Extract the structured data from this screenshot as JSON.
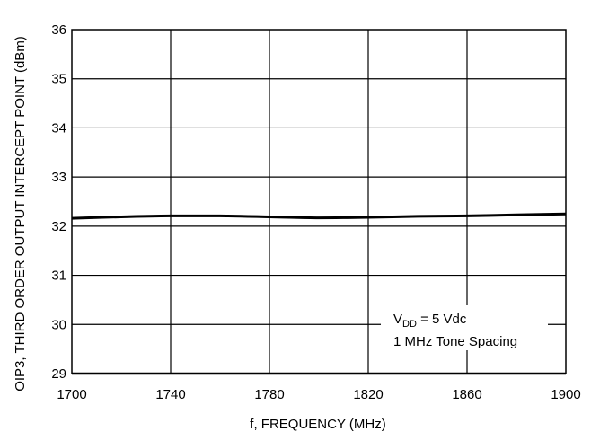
{
  "chart_data": {
    "type": "line",
    "title": "",
    "xlabel": "f, FREQUENCY (MHz)",
    "ylabel": "OIP3, THIRD ORDER OUTPUT INTERCEPT POINT (dBm)",
    "xlim": [
      1700,
      1900
    ],
    "ylim": [
      29,
      36
    ],
    "x_ticks": [
      1700,
      1740,
      1780,
      1820,
      1860,
      1900
    ],
    "y_ticks": [
      29,
      30,
      31,
      32,
      33,
      34,
      35,
      36
    ],
    "x_tick_labels": [
      "1700",
      "1740",
      "1780",
      "1820",
      "1860",
      "1900"
    ],
    "y_tick_labels": [
      "29",
      "30",
      "31",
      "32",
      "33",
      "34",
      "35",
      "36"
    ],
    "grid": true,
    "legend": "none",
    "series": [
      {
        "x": [
          1700,
          1720,
          1740,
          1750,
          1760,
          1780,
          1800,
          1820,
          1840,
          1860,
          1880,
          1900
        ],
        "values": [
          32.16,
          32.19,
          32.21,
          32.21,
          32.21,
          32.19,
          32.17,
          32.18,
          32.2,
          32.21,
          32.23,
          32.25
        ]
      }
    ],
    "annotations": {
      "v_main": "V",
      "v_sub": "DD",
      "v_rest": " = 5 Vdc",
      "line2": "1 MHz Tone Spacing"
    },
    "colors": {
      "line": "#000000",
      "grid": "#000000",
      "background": "#ffffff"
    }
  }
}
